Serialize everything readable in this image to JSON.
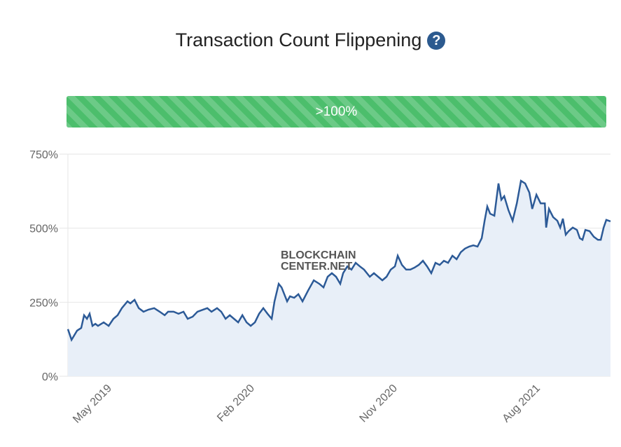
{
  "header": {
    "title": "Transaction Count Flippening",
    "help_icon": "question-circle-icon"
  },
  "progress": {
    "label": ">100%",
    "percent": 100,
    "color": "#4cbe6c"
  },
  "watermark": [
    "BLOCKCHAIN",
    "CENTER.NET"
  ],
  "chart_data": {
    "type": "area",
    "title": "Transaction Count Flippening",
    "xlabel": "",
    "ylabel": "",
    "ylim": [
      0,
      750
    ],
    "yticks": [
      0,
      250,
      500,
      750
    ],
    "ytick_labels": [
      "0%",
      "250%",
      "500%",
      "750%"
    ],
    "xticks": [
      2019.333,
      2020.083,
      2020.833,
      2021.583
    ],
    "xtick_labels": [
      "May 2019",
      "Feb 2020",
      "Nov 2020",
      "Aug 2021"
    ],
    "xlim": [
      2019.101,
      2021.95
    ],
    "line_color": "#2c5a97",
    "fill_color": "#e8eff8",
    "grid": true,
    "x": [
      2019.101,
      2019.12,
      2019.149,
      2019.171,
      2019.186,
      2019.201,
      2019.215,
      2019.23,
      2019.245,
      2019.259,
      2019.289,
      2019.315,
      2019.34,
      2019.362,
      2019.384,
      2019.414,
      2019.429,
      2019.451,
      2019.473,
      2019.498,
      2019.524,
      2019.554,
      2019.583,
      2019.609,
      2019.627,
      2019.656,
      2019.682,
      2019.708,
      2019.73,
      2019.756,
      2019.781,
      2019.811,
      2019.833,
      2019.855,
      2019.884,
      2019.906,
      2019.929,
      2019.951,
      2019.973,
      2019.995,
      2020.017,
      2020.039,
      2020.061,
      2020.083,
      2020.105,
      2020.127,
      2020.149,
      2020.171,
      2020.186,
      2020.208,
      2020.223,
      2020.252,
      2020.267,
      2020.289,
      2020.311,
      2020.333,
      2020.362,
      2020.392,
      2020.421,
      2020.443,
      2020.465,
      2020.487,
      2020.509,
      2020.531,
      2020.546,
      2020.568,
      2020.59,
      2020.612,
      2020.634,
      2020.656,
      2020.686,
      2020.708,
      2020.73,
      2020.752,
      2020.774,
      2020.796,
      2020.818,
      2020.833,
      2020.855,
      2020.877,
      2020.899,
      2020.921,
      2020.943,
      2020.965,
      2020.987,
      2021.009,
      2021.031,
      2021.053,
      2021.075,
      2021.097,
      2021.12,
      2021.142,
      2021.164,
      2021.186,
      2021.208,
      2021.23,
      2021.252,
      2021.274,
      2021.289,
      2021.303,
      2021.318,
      2021.34,
      2021.362,
      2021.377,
      2021.392,
      2021.414,
      2021.436,
      2021.458,
      2021.48,
      2021.502,
      2021.524,
      2021.539,
      2021.561,
      2021.583,
      2021.605,
      2021.612,
      2021.627,
      2021.649,
      2021.671,
      2021.686,
      2021.7,
      2021.715,
      2021.73,
      2021.752,
      2021.774,
      2021.789,
      2021.803,
      2021.818,
      2021.84,
      2021.862,
      2021.884,
      2021.899,
      2021.914,
      2021.928,
      2021.95
    ],
    "y": [
      159,
      123,
      154,
      163,
      206,
      194,
      211,
      170,
      177,
      170,
      182,
      170,
      194,
      206,
      230,
      253,
      246,
      258,
      230,
      218,
      225,
      230,
      218,
      206,
      218,
      218,
      211,
      218,
      194,
      201,
      218,
      225,
      230,
      218,
      230,
      218,
      194,
      206,
      194,
      182,
      206,
      182,
      170,
      182,
      211,
      230,
      211,
      194,
      253,
      312,
      300,
      253,
      270,
      265,
      277,
      253,
      289,
      324,
      312,
      300,
      336,
      348,
      336,
      312,
      348,
      371,
      360,
      383,
      371,
      360,
      336,
      348,
      336,
      324,
      336,
      360,
      371,
      407,
      376,
      360,
      360,
      367,
      376,
      390,
      371,
      348,
      383,
      376,
      390,
      383,
      407,
      395,
      419,
      431,
      438,
      442,
      438,
      466,
      525,
      573,
      549,
      542,
      651,
      596,
      608,
      561,
      525,
      584,
      660,
      651,
      620,
      565,
      613,
      584,
      584,
      502,
      565,
      537,
      525,
      502,
      532,
      478,
      490,
      502,
      494,
      466,
      461,
      494,
      490,
      471,
      461,
      461,
      502,
      528,
      523
    ]
  }
}
